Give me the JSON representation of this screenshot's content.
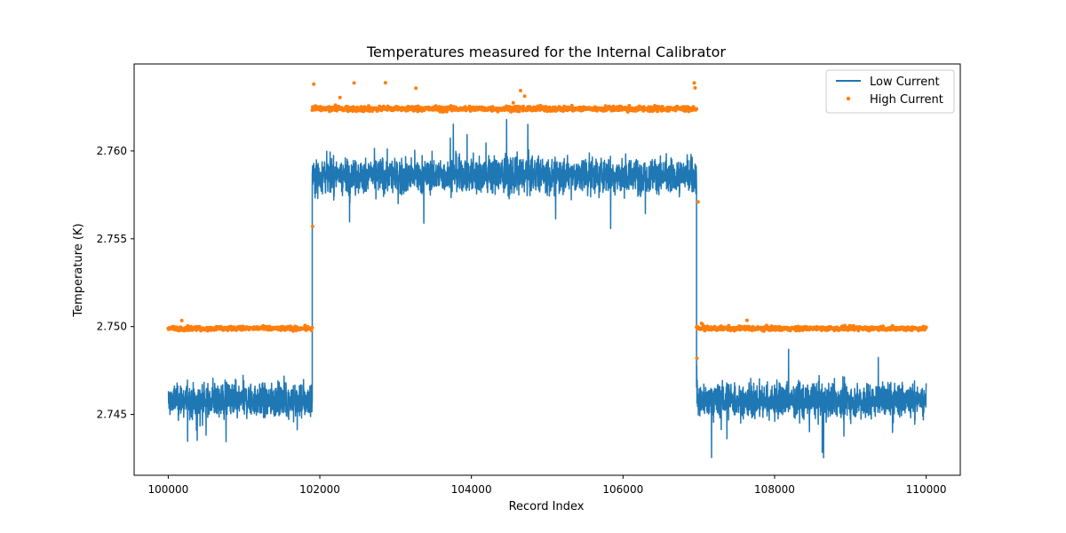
{
  "chart_data": {
    "type": "line",
    "title": "Temperatures measured for the Internal Calibrator",
    "xlabel": "Record Index",
    "ylabel": "Temperature (K)",
    "xlim": [
      99550,
      110450
    ],
    "ylim": [
      2.74154,
      2.76495
    ],
    "x_ticks": [
      100000,
      102000,
      104000,
      106000,
      108000,
      110000
    ],
    "x_tick_labels": [
      "100000",
      "102000",
      "104000",
      "106000",
      "108000",
      "110000"
    ],
    "y_ticks": [
      2.745,
      2.75,
      2.755,
      2.76
    ],
    "y_tick_labels": [
      "2.745",
      "2.750",
      "2.755",
      "2.760"
    ],
    "grid": false,
    "legend": {
      "position": "top-right",
      "entries": [
        "Low Current",
        "High Current"
      ]
    },
    "series": [
      {
        "name": "Low Current",
        "style": "line",
        "color": "#1f77b4",
        "segments": [
          {
            "x_start": 100000,
            "x_end": 101900,
            "mean": 2.7458,
            "band_low": 2.7442,
            "band_high": 2.7476,
            "min": 2.7428,
            "max": 2.7483
          },
          {
            "x_start": 101900,
            "x_end": 106970,
            "mean": 2.7586,
            "band_low": 2.7568,
            "band_high": 2.7603,
            "min": 2.7547,
            "max": 2.7623
          },
          {
            "x_start": 106970,
            "x_end": 110000,
            "mean": 2.7458,
            "band_low": 2.7442,
            "band_high": 2.7476,
            "min": 2.7425,
            "max": 2.7493
          }
        ]
      },
      {
        "name": "High Current",
        "style": "scatter",
        "color": "#ff7f0e",
        "segments": [
          {
            "x_start": 100000,
            "x_end": 101900,
            "mean": 2.7499,
            "band_low": 2.7497,
            "band_high": 2.7501,
            "min": 2.7496,
            "max": 2.7505
          },
          {
            "x_start": 101900,
            "x_end": 106970,
            "mean": 2.7624,
            "band_low": 2.7622,
            "band_high": 2.7627,
            "min": 2.762,
            "max": 2.7639
          },
          {
            "x_start": 106970,
            "x_end": 110000,
            "mean": 2.7499,
            "band_low": 2.7497,
            "band_high": 2.7501,
            "min": 2.7496,
            "max": 2.7504
          }
        ],
        "outliers": [
          {
            "x": 101920,
            "y": 2.7638
          },
          {
            "x": 101905,
            "y": 2.7557
          },
          {
            "x": 106990,
            "y": 2.7571
          },
          {
            "x": 106975,
            "y": 2.7482
          }
        ]
      }
    ]
  }
}
